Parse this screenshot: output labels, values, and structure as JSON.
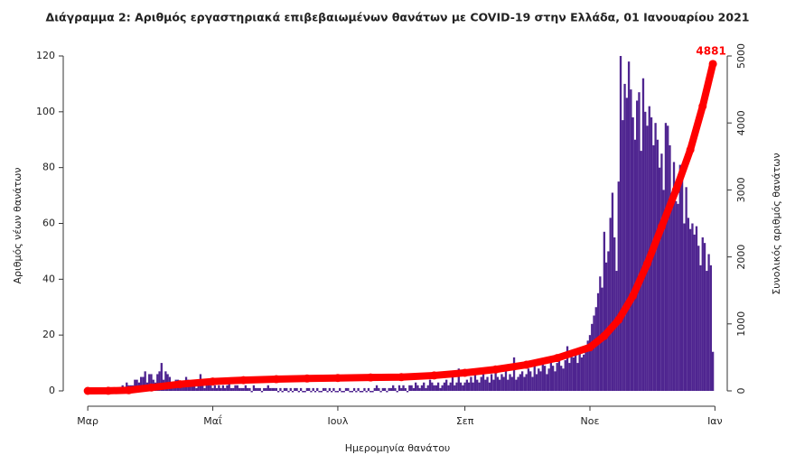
{
  "chart_data": {
    "type": "bar-line",
    "title": "Διάγραμμα 2: Αριθμός εργαστηριακά επιβεβαιωμένων θανάτων με COVID-19 στην Ελλάδα, 01 Ιανουαρίου 2021",
    "x_label": "Ημερομηνία θανάτου",
    "y_label": "Αριθμός νέων θανάτων",
    "y2_label": "Συνολικός αριθμός θανάτων",
    "xlim": [
      -8,
      312
    ],
    "xticks": [
      {
        "value": 0,
        "label": "Μαρ"
      },
      {
        "value": 61,
        "label": "Μαΐ"
      },
      {
        "value": 122,
        "label": "Ιουλ"
      },
      {
        "value": 184,
        "label": "Σεπ"
      },
      {
        "value": 245,
        "label": "Νοε"
      },
      {
        "value": 306,
        "label": "Ιαν"
      }
    ],
    "ylim": [
      0,
      120
    ],
    "yticks": [
      0,
      20,
      40,
      60,
      80,
      100,
      120
    ],
    "y2lim": [
      0,
      5000
    ],
    "y2ticks": [
      0,
      1000,
      2000,
      3000,
      4000,
      5000
    ],
    "series": [
      {
        "color": "#4f2590",
        "axis": "y",
        "x": [
          0,
          1,
          2,
          3,
          4,
          5,
          6,
          7,
          8,
          9,
          10,
          11,
          12,
          13,
          14,
          15,
          16,
          17,
          18,
          19,
          20,
          21,
          22,
          23,
          24,
          25,
          26,
          27,
          28,
          29,
          30,
          31,
          32,
          33,
          34,
          35,
          36,
          37,
          38,
          39,
          40,
          41,
          42,
          43,
          44,
          45,
          46,
          47,
          48,
          49,
          50,
          51,
          52,
          53,
          54,
          55,
          56,
          57,
          58,
          59,
          60,
          61,
          62,
          63,
          64,
          65,
          66,
          67,
          68,
          69,
          70,
          71,
          72,
          73,
          74,
          75,
          76,
          77,
          78,
          79,
          80,
          81,
          82,
          83,
          84,
          85,
          86,
          87,
          88,
          89,
          90,
          91,
          92,
          93,
          94,
          95,
          96,
          97,
          98,
          99,
          100,
          101,
          102,
          103,
          104,
          105,
          106,
          107,
          108,
          109,
          110,
          111,
          112,
          113,
          114,
          115,
          116,
          117,
          118,
          119,
          120,
          121,
          122,
          123,
          124,
          125,
          126,
          127,
          128,
          129,
          130,
          131,
          132,
          133,
          134,
          135,
          136,
          137,
          138,
          139,
          140,
          141,
          142,
          143,
          144,
          145,
          146,
          147,
          148,
          149,
          150,
          151,
          152,
          153,
          154,
          155,
          156,
          157,
          158,
          159,
          160,
          161,
          162,
          163,
          164,
          165,
          166,
          167,
          168,
          169,
          170,
          171,
          172,
          173,
          174,
          175,
          176,
          177,
          178,
          179,
          180,
          181,
          182,
          183,
          184,
          185,
          186,
          187,
          188,
          189,
          190,
          191,
          192,
          193,
          194,
          195,
          196,
          197,
          198,
          199,
          200,
          201,
          202,
          203,
          204,
          205,
          206,
          207,
          208,
          209,
          210,
          211,
          212,
          213,
          214,
          215,
          216,
          217,
          218,
          219,
          220,
          221,
          222,
          223,
          224,
          225,
          226,
          227,
          228,
          229,
          230,
          231,
          232,
          233,
          234,
          235,
          236,
          237,
          238,
          239,
          240,
          241,
          242,
          243,
          244,
          245,
          246,
          247,
          248,
          249,
          250,
          251,
          252,
          253,
          254,
          255,
          256,
          257,
          258,
          259,
          260,
          261,
          262,
          263,
          264,
          265,
          266,
          267,
          268,
          269,
          270,
          271,
          272,
          273,
          274,
          275,
          276,
          277,
          278,
          279,
          280,
          281,
          282,
          283,
          284,
          285,
          286,
          287,
          288,
          289,
          290,
          291,
          292,
          293,
          294,
          295,
          296,
          297,
          298,
          299,
          300,
          301,
          302,
          303,
          304,
          305
        ],
        "values": [
          0,
          0,
          0,
          0,
          0,
          0,
          0,
          0,
          0,
          0,
          0,
          1,
          0,
          1,
          1,
          0,
          1,
          2,
          1,
          3,
          2,
          2,
          2,
          4,
          4,
          3,
          5,
          5,
          7,
          3,
          6,
          6,
          4,
          3,
          6,
          7,
          10,
          4,
          7,
          6,
          5,
          3,
          2,
          4,
          4,
          3,
          2,
          3,
          5,
          4,
          3,
          2,
          3,
          1,
          3,
          6,
          2,
          1,
          2,
          3,
          2,
          1,
          2,
          1,
          2,
          1,
          2,
          1,
          2,
          3,
          1,
          1,
          2,
          2,
          1,
          1,
          1,
          2,
          1,
          1,
          0,
          2,
          1,
          1,
          1,
          0,
          1,
          1,
          2,
          1,
          1,
          1,
          1,
          0,
          1,
          0,
          1,
          1,
          0,
          1,
          0,
          1,
          1,
          0,
          1,
          0,
          0,
          1,
          1,
          0,
          1,
          0,
          1,
          0,
          0,
          1,
          1,
          0,
          1,
          0,
          1,
          0,
          0,
          1,
          0,
          0,
          1,
          1,
          0,
          0,
          1,
          0,
          1,
          0,
          0,
          1,
          0,
          1,
          0,
          0,
          1,
          2,
          1,
          0,
          1,
          1,
          0,
          1,
          1,
          2,
          1,
          0,
          2,
          1,
          2,
          1,
          0,
          2,
          2,
          1,
          3,
          2,
          1,
          2,
          3,
          1,
          2,
          4,
          3,
          2,
          2,
          3,
          1,
          2,
          3,
          4,
          2,
          3,
          5,
          2,
          3,
          8,
          3,
          2,
          3,
          4,
          3,
          5,
          3,
          6,
          4,
          3,
          5,
          6,
          4,
          5,
          3,
          6,
          4,
          7,
          5,
          4,
          6,
          5,
          8,
          4,
          6,
          5,
          12,
          4,
          5,
          6,
          7,
          5,
          6,
          8,
          7,
          5,
          9,
          6,
          8,
          7,
          10,
          9,
          6,
          8,
          11,
          9,
          7,
          10,
          12,
          9,
          8,
          11,
          16,
          10,
          13,
          12,
          14,
          10,
          15,
          12,
          13,
          14,
          18,
          20,
          24,
          27,
          30,
          35,
          41,
          37,
          57,
          46,
          50,
          62,
          71,
          55,
          43,
          75,
          120,
          97,
          110,
          105,
          118,
          108,
          98,
          90,
          104,
          107,
          86,
          112,
          100,
          95,
          102,
          98,
          88,
          96,
          90,
          80,
          85,
          72,
          96,
          95,
          88,
          70,
          82,
          68,
          67,
          81,
          80,
          60,
          73,
          62,
          58,
          60,
          56,
          59,
          52,
          45,
          55,
          53,
          43,
          49,
          45,
          14
        ]
      },
      {
        "color": "#ff0000",
        "axis": "y2",
        "x": [
          0,
          10,
          20,
          31,
          45,
          61,
          76,
          92,
          107,
          122,
          138,
          153,
          169,
          184,
          199,
          214,
          229,
          245,
          252,
          259,
          266,
          273,
          280,
          287,
          294,
          300,
          305
        ],
        "values": [
          0,
          1,
          10,
          50,
          100,
          140,
          160,
          175,
          185,
          192,
          200,
          205,
          230,
          270,
          320,
          390,
          490,
          650,
          820,
          1060,
          1420,
          1900,
          2450,
          3000,
          3600,
          4250,
          4881
        ],
        "value_labels": [
          null,
          null,
          null,
          null,
          null,
          null,
          null,
          null,
          null,
          null,
          null,
          null,
          null,
          null,
          null,
          null,
          null,
          null,
          null,
          null,
          null,
          null,
          null,
          null,
          null,
          null,
          "4881"
        ]
      }
    ]
  }
}
